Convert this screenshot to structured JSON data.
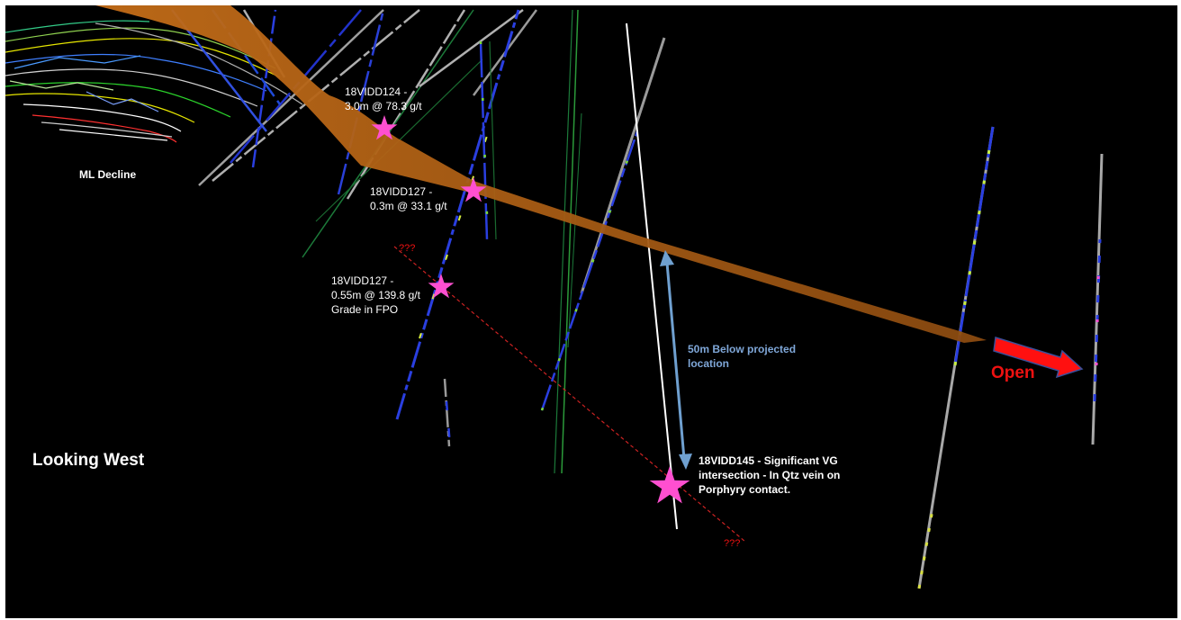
{
  "labels": {
    "ml_decline": "ML Decline",
    "looking_west": "Looking West",
    "hole_124": "18VIDD124 -\n3.0m @  78.3 g/t",
    "hole_127a": "18VIDD127 -\n0.3m @  33.1 g/t",
    "hole_127b": "18VIDD127 -\n0.55m @ 139.8 g/t\nGrade in FPO",
    "below_projected": "50m Below projected\nlocation",
    "hole_145": "18VIDD145 - Significant VG\nintersection - In Qtz vein on\nPorphyry contact.",
    "unknown_top": "???",
    "unknown_bottom": "???",
    "open": "Open"
  },
  "colors": {
    "background": "#000000",
    "vein": "#b86a1c",
    "star": "#ff4fd0",
    "arrow_blue": "#6fa0d0",
    "open_arrow": "#ff1010",
    "projection_line": "#cc2222"
  }
}
